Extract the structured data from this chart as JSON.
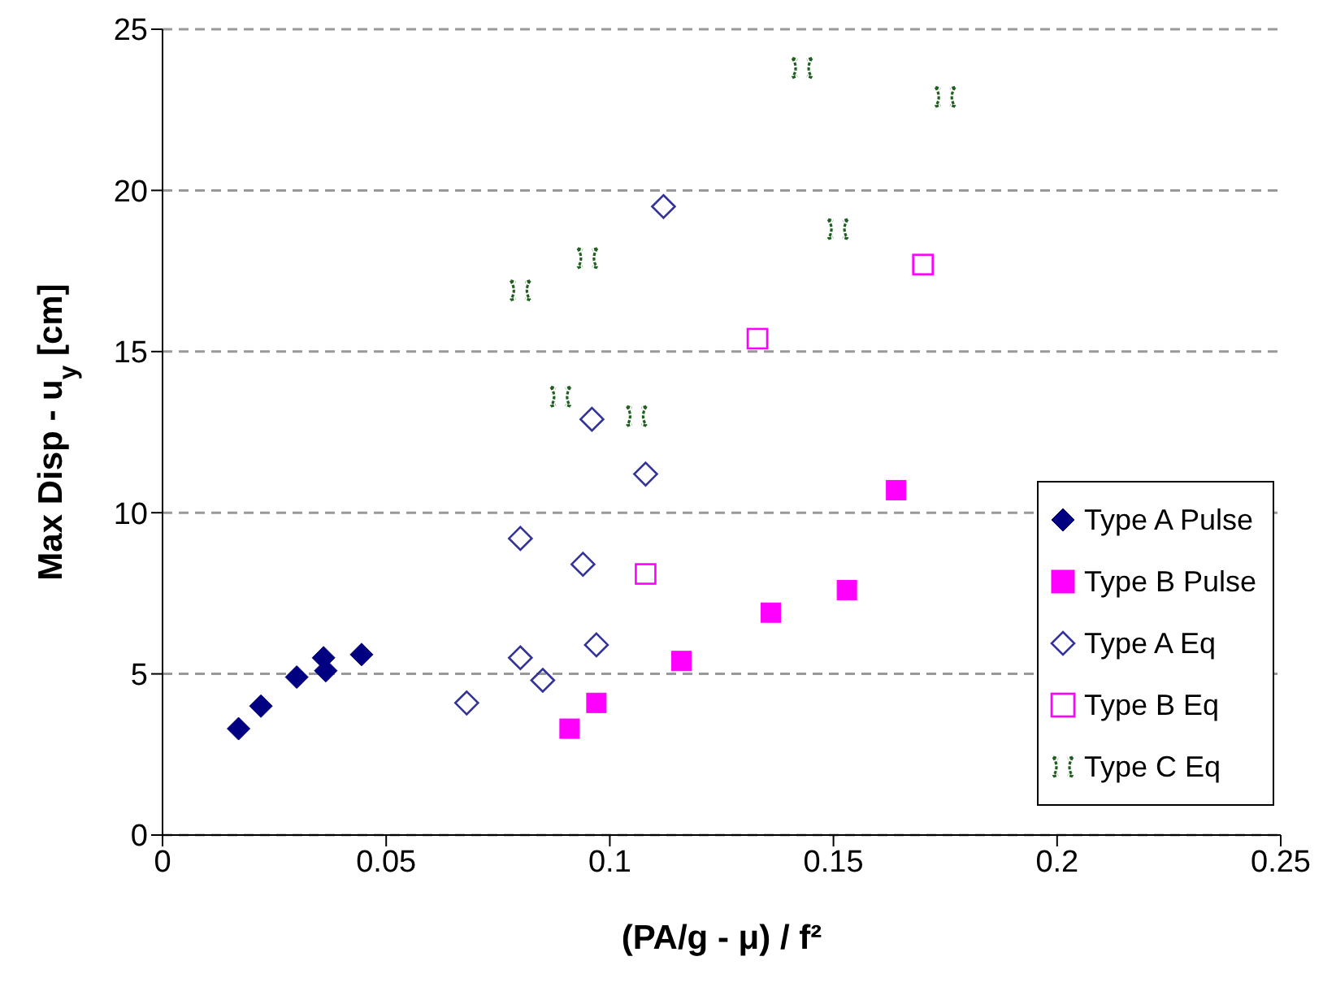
{
  "chart_data": {
    "type": "scatter",
    "xlabel": "(PA/g - μ) / f²",
    "ylabel": "Max Disp - u$_{y}$ [cm]",
    "xlim": [
      0,
      0.25
    ],
    "xticks": [
      0,
      0.05,
      0.1,
      0.15,
      0.2,
      0.25
    ],
    "ylim": [
      0,
      25
    ],
    "yticks": [
      0,
      5,
      10,
      15,
      20,
      25
    ],
    "grid": "y",
    "legend": "bottom right",
    "series": [
      {
        "name": "Type A Pulse",
        "color": "#000080",
        "marker": "diamond",
        "x": [
          0.017,
          0.022,
          0.03,
          0.036,
          0.0365,
          0.0445
        ],
        "values": [
          3.3,
          4.0,
          4.9,
          5.5,
          5.1,
          5.6
        ]
      },
      {
        "name": "Type B Pulse",
        "color": "#ff00ff",
        "marker": "square",
        "x": [
          0.091,
          0.097,
          0.116,
          0.136,
          0.153,
          0.164
        ],
        "values": [
          3.3,
          4.1,
          5.4,
          6.9,
          7.6,
          10.7
        ]
      },
      {
        "name": "Type A Eq",
        "color": "#333399",
        "marker": "diamond",
        "x": [
          0.068,
          0.08,
          0.085,
          0.097,
          0.08,
          0.094,
          0.096,
          0.108,
          0.112
        ],
        "values": [
          4.1,
          5.5,
          4.8,
          5.9,
          9.2,
          8.4,
          12.9,
          11.2,
          19.5
        ]
      },
      {
        "name": "Type B Eq",
        "color": "#ff00ff",
        "marker": "square",
        "x": [
          0.108,
          0.133,
          0.17
        ],
        "values": [
          8.1,
          15.4,
          17.7
        ]
      },
      {
        "name": "Type C Eq",
        "color": "#1f5f1f",
        "marker": "cross",
        "x": [
          0.143,
          0.175,
          0.151,
          0.095,
          0.08,
          0.089,
          0.106
        ],
        "values": [
          23.8,
          22.9,
          18.8,
          17.9,
          16.9,
          13.6,
          13.0
        ]
      }
    ]
  }
}
